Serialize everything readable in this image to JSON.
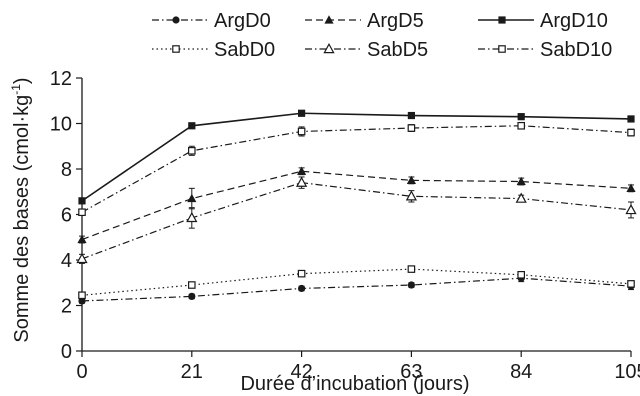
{
  "chart_data": {
    "type": "line",
    "title": "",
    "xlabel": "Durée d’incubation (jours)",
    "ylabel_main": "Somme des bases (cmol·kg",
    "ylabel_sup": "-1",
    "ylabel_end": ")",
    "xlim": [
      0,
      105
    ],
    "ylim": [
      0,
      12
    ],
    "x_ticks": [
      0,
      21,
      42,
      63,
      84,
      105
    ],
    "y_ticks": [
      0,
      2,
      4,
      6,
      8,
      10,
      12
    ],
    "grid": false,
    "legend_position": "top",
    "x": [
      0,
      21,
      42,
      63,
      84,
      105
    ],
    "series": [
      {
        "name": "ArgD0",
        "marker": "circle",
        "dash": "dashdot",
        "values": [
          2.2,
          2.4,
          2.75,
          2.9,
          3.2,
          2.85
        ],
        "err": [
          0.1,
          0.1,
          0.1,
          0.1,
          0.15,
          0.15
        ]
      },
      {
        "name": "ArgD5",
        "marker": "triangle",
        "dash": "dashed",
        "values": [
          4.9,
          6.7,
          7.9,
          7.5,
          7.45,
          7.15
        ],
        "err": [
          0.15,
          0.45,
          0.15,
          0.15,
          0.15,
          0.15
        ]
      },
      {
        "name": "ArgD10",
        "marker": "square",
        "dash": "solid",
        "values": [
          6.6,
          9.9,
          10.45,
          10.35,
          10.3,
          10.2
        ],
        "err": [
          0.1,
          0.1,
          0.1,
          0.1,
          0.1,
          0.1
        ]
      },
      {
        "name": "SabD0",
        "marker": "square-open",
        "dash": "dotted",
        "values": [
          2.45,
          2.9,
          3.4,
          3.6,
          3.35,
          2.95
        ],
        "err": [
          0.1,
          0.1,
          0.1,
          0.1,
          0.1,
          0.1
        ]
      },
      {
        "name": "SabD5",
        "marker": "triangle-open",
        "dash": "dashdot",
        "values": [
          4.05,
          5.85,
          7.4,
          6.8,
          6.7,
          6.2
        ],
        "err": [
          0.2,
          0.45,
          0.25,
          0.25,
          0.15,
          0.35
        ]
      },
      {
        "name": "SabD10",
        "marker": "square-open",
        "dash": "dashdot",
        "values": [
          6.1,
          8.8,
          9.65,
          9.8,
          9.9,
          9.6
        ],
        "err": [
          0.1,
          0.2,
          0.2,
          0.15,
          0.1,
          0.15
        ]
      }
    ]
  }
}
